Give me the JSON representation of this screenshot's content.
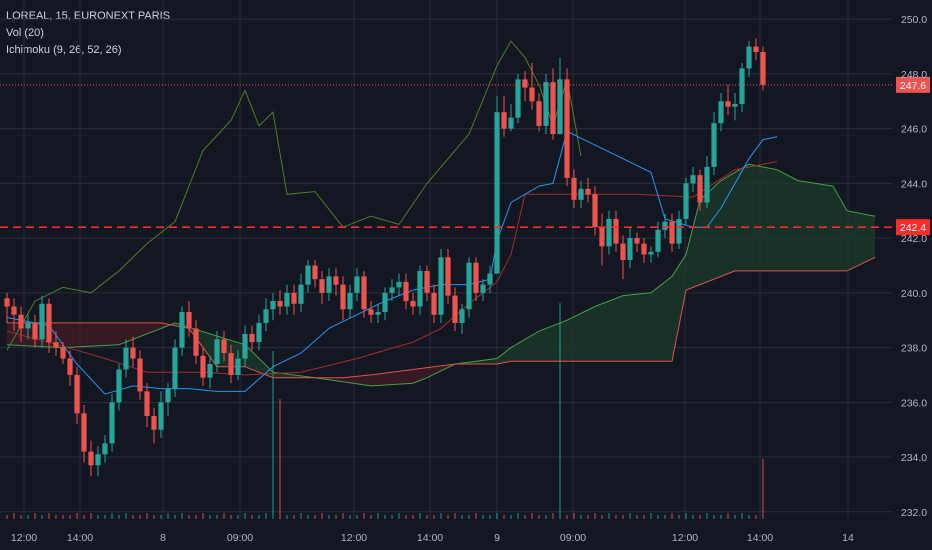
{
  "legend": {
    "symbol": "LOREAL, 15, EURONEXT PARIS",
    "volume": "Vol (20)",
    "ichimoku": "Ichimoku (9, 26, 52, 26)"
  },
  "colors": {
    "background": "#131722",
    "grid": "#2a2e39",
    "up": "#26a69a",
    "down": "#ef5350",
    "conversion_line": "#2196f3",
    "base_line": "#a32d2d",
    "lagging_span": "#4e7d2a",
    "lead_a": "#43a047",
    "lead_b": "#e0524d",
    "cloud_bull": "#1b3a2a",
    "cloud_bear": "#3e1c24"
  },
  "chart_data": {
    "type": "candlestick",
    "title": "LOREAL, 15, EURONEXT PARIS",
    "indicators": [
      "Vol (20)",
      "Ichimoku (9, 26, 52, 26)"
    ],
    "ylim": [
      231.7,
      250.7
    ],
    "y_ticks": [
      "250.0",
      "248.0",
      "246.0",
      "244.0",
      "242.0",
      "240.0",
      "238.0",
      "236.0",
      "234.0",
      "232.0"
    ],
    "x_ticks": [
      "12:00",
      "14:00",
      "8",
      "09:00",
      "12:00",
      "14:00",
      "9",
      "09:00",
      "12:00",
      "14:00",
      "14"
    ],
    "grid": true,
    "candles": [
      [
        239.8,
        239.5,
        240.0,
        238.9
      ],
      [
        239.5,
        239.2,
        239.8,
        238.6
      ],
      [
        239.2,
        238.7,
        239.5,
        238.2
      ],
      [
        238.7,
        238.9,
        239.2,
        238.3
      ],
      [
        238.9,
        238.3,
        239.2,
        238.0
      ],
      [
        238.3,
        239.6,
        239.9,
        238.0
      ],
      [
        239.6,
        238.2,
        239.8,
        237.8
      ],
      [
        238.2,
        238.0,
        238.6,
        237.7
      ],
      [
        238.0,
        237.6,
        238.2,
        237.4
      ],
      [
        237.6,
        237.0,
        237.9,
        236.6
      ],
      [
        237.0,
        235.6,
        237.3,
        235.2
      ],
      [
        235.6,
        234.2,
        235.9,
        233.8
      ],
      [
        234.2,
        233.7,
        234.6,
        233.3
      ],
      [
        233.7,
        234.1,
        234.4,
        233.3
      ],
      [
        234.1,
        234.5,
        234.8,
        233.8
      ],
      [
        234.5,
        236.0,
        236.3,
        234.2
      ],
      [
        236.0,
        237.2,
        237.4,
        235.7
      ],
      [
        237.2,
        238.0,
        238.3,
        236.9
      ],
      [
        238.0,
        237.6,
        238.4,
        237.3
      ],
      [
        237.6,
        236.4,
        237.9,
        236.1
      ],
      [
        236.4,
        235.5,
        236.7,
        235.1
      ],
      [
        235.5,
        235.0,
        235.8,
        234.5
      ],
      [
        235.0,
        236.0,
        236.4,
        234.7
      ],
      [
        236.0,
        236.5,
        236.7,
        235.5
      ],
      [
        236.5,
        238.0,
        238.3,
        236.2
      ],
      [
        238.0,
        239.3,
        239.5,
        237.7
      ],
      [
        239.3,
        238.7,
        239.7,
        238.4
      ],
      [
        238.7,
        237.7,
        239.0,
        237.4
      ],
      [
        237.7,
        236.9,
        238.0,
        236.6
      ],
      [
        236.9,
        237.4,
        237.7,
        236.5
      ],
      [
        237.4,
        238.3,
        238.6,
        237.1
      ],
      [
        238.3,
        237.8,
        238.6,
        237.5
      ],
      [
        237.8,
        237.0,
        238.1,
        236.7
      ],
      [
        237.0,
        237.6,
        237.9,
        236.8
      ],
      [
        237.6,
        238.5,
        238.8,
        237.3
      ],
      [
        238.5,
        238.2,
        238.8,
        237.9
      ],
      [
        238.2,
        238.9,
        239.2,
        237.9
      ],
      [
        238.9,
        239.4,
        239.8,
        238.6
      ],
      [
        239.4,
        239.7,
        240.0,
        239.0
      ],
      [
        239.7,
        239.5,
        240.1,
        239.2
      ],
      [
        239.5,
        240.0,
        240.3,
        239.2
      ],
      [
        240.0,
        239.6,
        240.3,
        239.2
      ],
      [
        239.6,
        240.3,
        240.7,
        239.3
      ],
      [
        240.3,
        241.0,
        241.2,
        240.0
      ],
      [
        241.0,
        240.5,
        241.2,
        240.2
      ],
      [
        240.5,
        240.0,
        240.8,
        239.6
      ],
      [
        240.0,
        240.6,
        240.9,
        239.7
      ],
      [
        240.6,
        240.3,
        240.9,
        239.9
      ],
      [
        240.3,
        239.4,
        240.6,
        239.0
      ],
      [
        239.4,
        240.0,
        240.3,
        239.1
      ],
      [
        240.0,
        240.6,
        240.9,
        239.7
      ],
      [
        240.6,
        239.4,
        240.8,
        239.1
      ],
      [
        239.4,
        239.2,
        239.7,
        238.9
      ],
      [
        239.2,
        239.3,
        239.6,
        238.9
      ],
      [
        239.3,
        240.0,
        240.2,
        239.0
      ],
      [
        240.0,
        240.2,
        240.5,
        239.7
      ],
      [
        240.2,
        240.4,
        240.7,
        239.9
      ],
      [
        240.4,
        239.7,
        240.7,
        239.4
      ],
      [
        239.7,
        239.5,
        240.0,
        239.2
      ],
      [
        239.5,
        240.8,
        241.0,
        239.2
      ],
      [
        240.8,
        240.0,
        241.0,
        239.7
      ],
      [
        240.0,
        239.2,
        240.3,
        238.9
      ],
      [
        239.2,
        241.3,
        241.6,
        238.9
      ],
      [
        241.3,
        239.9,
        241.6,
        239.6
      ],
      [
        239.9,
        238.9,
        240.2,
        238.6
      ],
      [
        238.9,
        239.4,
        239.6,
        238.5
      ],
      [
        239.4,
        241.1,
        241.3,
        239.1
      ],
      [
        241.1,
        240.0,
        241.3,
        239.7
      ],
      [
        240.0,
        240.3,
        240.5,
        239.7
      ],
      [
        240.3,
        240.7,
        241.0,
        240.0
      ],
      [
        240.7,
        246.6,
        247.2,
        243.6
      ],
      [
        246.6,
        246.0,
        247.2,
        245.7
      ],
      [
        246.0,
        246.4,
        246.9,
        245.9
      ],
      [
        246.4,
        247.8,
        248.0,
        246.2
      ],
      [
        247.8,
        247.5,
        248.1,
        247.0
      ],
      [
        247.5,
        247.0,
        248.4,
        246.7
      ],
      [
        247.0,
        246.1,
        247.3,
        245.9
      ],
      [
        246.1,
        247.7,
        248.0,
        245.8
      ],
      [
        247.7,
        245.8,
        248.2,
        245.6
      ],
      [
        245.8,
        247.8,
        248.6,
        245.8
      ],
      [
        247.8,
        244.2,
        248.2,
        243.9
      ],
      [
        244.2,
        243.4,
        244.5,
        243.1
      ],
      [
        243.4,
        243.8,
        244.1,
        243.1
      ],
      [
        243.8,
        243.6,
        244.2,
        243.3
      ],
      [
        243.6,
        242.4,
        243.9,
        242.1
      ],
      [
        242.4,
        241.7,
        242.9,
        241.0
      ],
      [
        241.7,
        242.7,
        243.0,
        241.4
      ],
      [
        242.7,
        241.8,
        243.0,
        241.5
      ],
      [
        241.8,
        241.2,
        242.1,
        240.5
      ],
      [
        241.2,
        242.0,
        242.4,
        240.9
      ],
      [
        242.0,
        241.8,
        242.2,
        241.5
      ],
      [
        241.8,
        241.4,
        242.0,
        241.1
      ],
      [
        241.4,
        241.5,
        241.7,
        241.1
      ],
      [
        241.5,
        242.3,
        242.6,
        241.3
      ],
      [
        242.3,
        242.6,
        242.9,
        242.0
      ],
      [
        242.6,
        241.8,
        242.9,
        241.5
      ],
      [
        241.8,
        242.7,
        243.0,
        241.6
      ],
      [
        242.7,
        244.0,
        244.2,
        242.5
      ],
      [
        244.0,
        244.3,
        244.6,
        243.7
      ],
      [
        244.3,
        243.3,
        244.5,
        243.0
      ],
      [
        243.3,
        244.6,
        245.0,
        243.1
      ],
      [
        244.6,
        246.2,
        246.6,
        244.3
      ],
      [
        246.2,
        247.0,
        247.3,
        245.9
      ],
      [
        247.0,
        246.8,
        247.6,
        246.5
      ],
      [
        246.8,
        246.9,
        247.3,
        246.3
      ],
      [
        246.9,
        248.2,
        248.4,
        246.6
      ],
      [
        248.2,
        249.0,
        249.2,
        247.9
      ],
      [
        249.0,
        248.8,
        249.3,
        248.5
      ],
      [
        248.8,
        247.6,
        249.0,
        247.4
      ]
    ],
    "volume": [
      2,
      3,
      2,
      2,
      3,
      2,
      3,
      2,
      2,
      2,
      3,
      2,
      3,
      2,
      2,
      3,
      2,
      3,
      2,
      2,
      3,
      2,
      2,
      3,
      2,
      3,
      2,
      2,
      3,
      2,
      2,
      3,
      2,
      2,
      3,
      2,
      2,
      3,
      2,
      3,
      2,
      2,
      3,
      2,
      2,
      3,
      2,
      2,
      3,
      2,
      2,
      3,
      2,
      3,
      2,
      2,
      3,
      2,
      2,
      3,
      2,
      2,
      3,
      2,
      3,
      2,
      2,
      3,
      2,
      2,
      3,
      2,
      2,
      3,
      2,
      3,
      2,
      2,
      3,
      2,
      2,
      3,
      2,
      2,
      3,
      2,
      3,
      2,
      2,
      3,
      2,
      2,
      3,
      2,
      2,
      3,
      2,
      3,
      2,
      2,
      3,
      2,
      2,
      3,
      2,
      3,
      2,
      2,
      3
    ],
    "volume_spikes": [
      [
        38,
        14
      ],
      [
        39,
        10
      ],
      [
        79,
        18
      ],
      [
        108,
        5
      ]
    ],
    "ichimoku": {
      "conversion_line": [
        [
          0,
          239.1
        ],
        [
          6,
          238.8
        ],
        [
          10,
          237.4
        ],
        [
          14,
          236.3
        ],
        [
          18,
          236.6
        ],
        [
          22,
          236.5
        ],
        [
          26,
          236.5
        ],
        [
          30,
          236.4
        ],
        [
          34,
          236.4
        ],
        [
          38,
          237.3
        ],
        [
          42,
          237.8
        ],
        [
          46,
          238.7
        ],
        [
          50,
          239.2
        ],
        [
          54,
          239.7
        ],
        [
          58,
          240.1
        ],
        [
          62,
          240.3
        ],
        [
          66,
          240.3
        ],
        [
          69,
          240.5
        ],
        [
          70,
          241.9
        ],
        [
          72,
          243.3
        ],
        [
          76,
          243.9
        ],
        [
          78,
          244.0
        ],
        [
          80,
          245.9
        ],
        [
          84,
          245.4
        ],
        [
          88,
          244.9
        ],
        [
          92,
          244.4
        ],
        [
          94,
          242.7
        ],
        [
          98,
          242.4
        ],
        [
          100,
          242.4
        ],
        [
          102,
          243.1
        ],
        [
          104,
          244.0
        ],
        [
          106,
          244.9
        ],
        [
          108,
          245.6
        ],
        [
          110,
          245.7
        ]
      ],
      "base_line": [
        [
          0,
          238.6
        ],
        [
          10,
          237.9
        ],
        [
          14,
          237.6
        ],
        [
          20,
          237.1
        ],
        [
          28,
          237.1
        ],
        [
          34,
          237.0
        ],
        [
          42,
          237.1
        ],
        [
          50,
          237.6
        ],
        [
          58,
          238.2
        ],
        [
          62,
          238.7
        ],
        [
          66,
          239.6
        ],
        [
          70,
          240.4
        ],
        [
          72,
          241.4
        ],
        [
          74,
          243.6
        ],
        [
          90,
          243.6
        ],
        [
          98,
          243.5
        ],
        [
          104,
          244.5
        ],
        [
          110,
          244.8
        ]
      ],
      "lagging_span": [
        [
          0,
          237.9
        ],
        [
          4,
          239.7
        ],
        [
          8,
          240.2
        ],
        [
          12,
          240.0
        ],
        [
          16,
          240.8
        ],
        [
          20,
          241.8
        ],
        [
          24,
          242.6
        ],
        [
          28,
          245.2
        ],
        [
          32,
          246.3
        ],
        [
          34,
          247.4
        ],
        [
          36,
          246.1
        ],
        [
          38,
          246.6
        ],
        [
          40,
          243.6
        ],
        [
          44,
          243.7
        ],
        [
          48,
          242.4
        ],
        [
          52,
          242.8
        ],
        [
          56,
          242.5
        ],
        [
          60,
          244.0
        ],
        [
          66,
          245.8
        ],
        [
          70,
          248.3
        ],
        [
          72,
          249.2
        ],
        [
          74,
          248.6
        ],
        [
          76,
          247.6
        ],
        [
          78,
          246.1
        ],
        [
          80,
          247.8
        ],
        [
          82,
          245.0
        ]
      ],
      "lead_a": [
        [
          0,
          238.1
        ],
        [
          8,
          238.0
        ],
        [
          16,
          238.1
        ],
        [
          24,
          238.9
        ],
        [
          34,
          238.1
        ],
        [
          38,
          237.1
        ],
        [
          44,
          236.9
        ],
        [
          52,
          236.6
        ],
        [
          58,
          236.7
        ],
        [
          60,
          236.9
        ],
        [
          64,
          237.4
        ],
        [
          70,
          237.6
        ],
        [
          72,
          238.0
        ],
        [
          76,
          238.6
        ],
        [
          80,
          239.0
        ],
        [
          84,
          239.5
        ],
        [
          88,
          239.9
        ],
        [
          92,
          240.0
        ],
        [
          95,
          240.6
        ],
        [
          97,
          241.4
        ],
        [
          99,
          243.4
        ],
        [
          102,
          244.1
        ],
        [
          106,
          244.7
        ],
        [
          110,
          244.5
        ],
        [
          113,
          244.1
        ],
        [
          118,
          243.9
        ],
        [
          120,
          243.0
        ],
        [
          124,
          242.8
        ]
      ],
      "lead_b": [
        [
          0,
          238.9
        ],
        [
          14,
          238.9
        ],
        [
          22,
          238.9
        ],
        [
          26,
          238.7
        ],
        [
          30,
          237.3
        ],
        [
          34,
          237.3
        ],
        [
          38,
          236.9
        ],
        [
          48,
          236.9
        ],
        [
          52,
          237.0
        ],
        [
          58,
          237.2
        ],
        [
          64,
          237.4
        ],
        [
          70,
          237.4
        ],
        [
          72,
          237.5
        ],
        [
          76,
          237.5
        ],
        [
          84,
          237.5
        ],
        [
          88,
          237.5
        ],
        [
          92,
          237.5
        ],
        [
          95,
          237.5
        ],
        [
          97,
          240.1
        ],
        [
          100,
          240.4
        ],
        [
          104,
          240.8
        ],
        [
          120,
          240.8
        ],
        [
          124,
          241.3
        ]
      ]
    },
    "reference_lines": [
      {
        "value": 247.6,
        "label": "247.6",
        "style": "dotted",
        "color": "#ef5350"
      },
      {
        "value": 242.4,
        "label": "242.4",
        "style": "dashed",
        "color": "#ff2a2a"
      }
    ]
  }
}
